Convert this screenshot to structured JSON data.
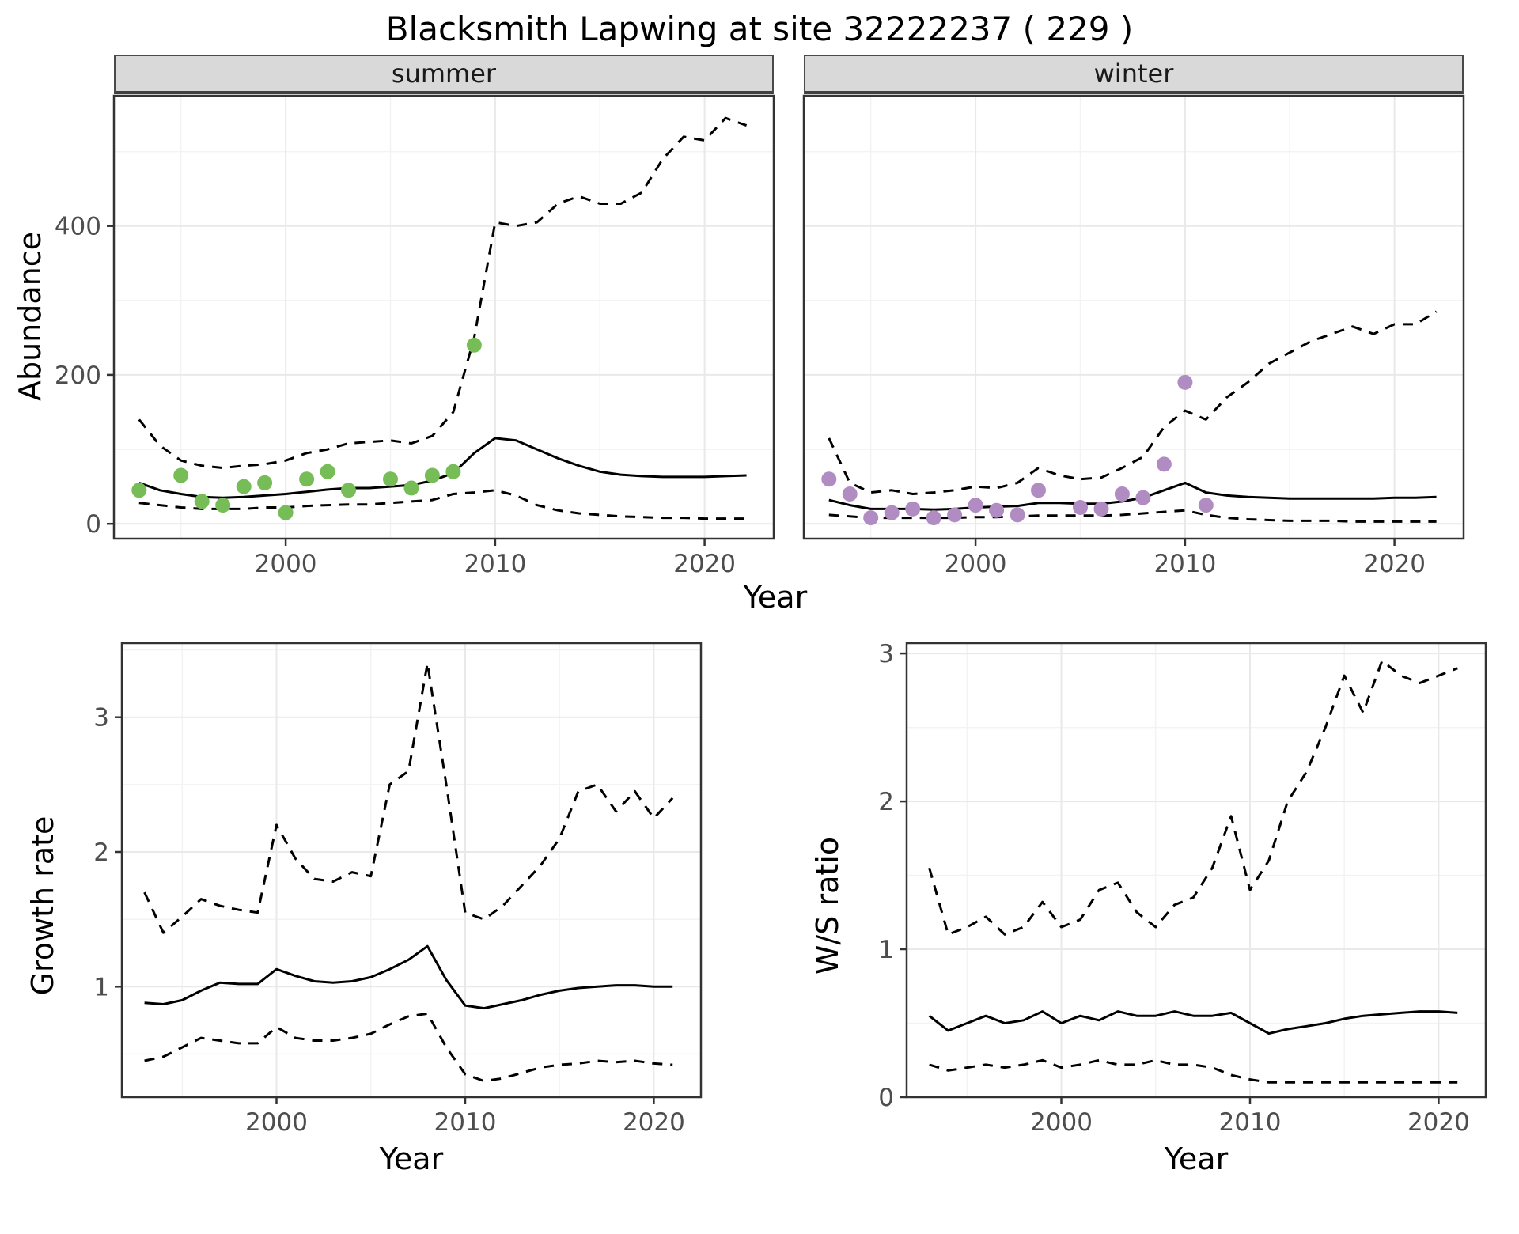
{
  "title": "Blacksmith Lapwing at site 32222237 ( 229 )",
  "chart_data": [
    {
      "type": "line",
      "panel": "abundance-summer",
      "facet_label": "summer",
      "xlabel": "Year",
      "ylabel": "Abundance",
      "xlim": [
        1991.8,
        2023.3
      ],
      "ylim": [
        -20,
        575
      ],
      "xticks": [
        2000,
        2010,
        2020
      ],
      "yticks": [
        0,
        200,
        400
      ],
      "grid": true,
      "legend": "none",
      "x": [
        1993,
        1994,
        1995,
        1996,
        1997,
        1998,
        1999,
        2000,
        2001,
        2002,
        2003,
        2004,
        2005,
        2006,
        2007,
        2008,
        2009,
        2010,
        2011,
        2012,
        2013,
        2014,
        2015,
        2016,
        2017,
        2018,
        2019,
        2020,
        2021,
        2022
      ],
      "series": [
        {
          "name": "model fit",
          "style": "solid",
          "color": "#000000",
          "values": [
            55,
            45,
            40,
            36,
            35,
            36,
            38,
            40,
            43,
            46,
            48,
            48,
            50,
            52,
            58,
            68,
            95,
            115,
            112,
            100,
            88,
            78,
            70,
            66,
            64,
            63,
            63,
            63,
            64,
            65
          ]
        },
        {
          "name": "upper credible interval",
          "style": "dashed",
          "color": "#000000",
          "values": [
            140,
            105,
            85,
            78,
            75,
            78,
            80,
            85,
            95,
            100,
            108,
            110,
            112,
            108,
            118,
            150,
            250,
            405,
            400,
            405,
            430,
            440,
            430,
            430,
            445,
            490,
            520,
            515,
            545,
            535
          ]
        },
        {
          "name": "lower credible interval",
          "style": "dashed",
          "color": "#000000",
          "values": [
            28,
            25,
            22,
            20,
            20,
            20,
            22,
            22,
            24,
            25,
            26,
            26,
            28,
            30,
            32,
            40,
            42,
            45,
            38,
            25,
            18,
            14,
            12,
            10,
            9,
            8,
            8,
            7,
            7,
            7
          ]
        }
      ],
      "points": {
        "name": "observed summer counts",
        "color": "#77bd57",
        "x": [
          1993,
          1995,
          1996,
          1997,
          1998,
          1999,
          2000,
          2001,
          2002,
          2003,
          2005,
          2006,
          2007,
          2008,
          2009
        ],
        "y": [
          45,
          65,
          30,
          25,
          50,
          55,
          15,
          60,
          70,
          45,
          60,
          48,
          65,
          70,
          240
        ]
      }
    },
    {
      "type": "line",
      "panel": "abundance-winter",
      "facet_label": "winter",
      "xlabel": "Year",
      "ylabel": "",
      "xlim": [
        1991.8,
        2023.3
      ],
      "ylim": [
        -20,
        575
      ],
      "xticks": [
        2000,
        2010,
        2020
      ],
      "yticks": [
        0,
        200,
        400
      ],
      "grid": true,
      "legend": "none",
      "x": [
        1993,
        1994,
        1995,
        1996,
        1997,
        1998,
        1999,
        2000,
        2001,
        2002,
        2003,
        2004,
        2005,
        2006,
        2007,
        2008,
        2009,
        2010,
        2011,
        2012,
        2013,
        2014,
        2015,
        2016,
        2017,
        2018,
        2019,
        2020,
        2021,
        2022
      ],
      "series": [
        {
          "name": "model fit",
          "style": "solid",
          "color": "#000000",
          "values": [
            32,
            25,
            20,
            20,
            20,
            19,
            20,
            22,
            23,
            24,
            28,
            28,
            27,
            27,
            30,
            35,
            45,
            55,
            42,
            38,
            36,
            35,
            34,
            34,
            34,
            34,
            34,
            35,
            35,
            36
          ]
        },
        {
          "name": "upper credible interval",
          "style": "dashed",
          "color": "#000000",
          "values": [
            115,
            55,
            42,
            45,
            40,
            42,
            45,
            50,
            48,
            55,
            75,
            65,
            60,
            62,
            75,
            90,
            130,
            152,
            140,
            170,
            190,
            215,
            230,
            245,
            255,
            265,
            255,
            268,
            268,
            285
          ]
        },
        {
          "name": "lower credible interval",
          "style": "dashed",
          "color": "#000000",
          "values": [
            12,
            10,
            8,
            8,
            8,
            8,
            8,
            9,
            9,
            10,
            11,
            11,
            11,
            11,
            12,
            14,
            16,
            18,
            12,
            8,
            6,
            5,
            4,
            4,
            4,
            3,
            3,
            3,
            3,
            3
          ]
        }
      ],
      "points": {
        "name": "observed winter counts",
        "color": "#b18cc2",
        "x": [
          1993,
          1994,
          1995,
          1996,
          1997,
          1998,
          1999,
          2000,
          2001,
          2002,
          2003,
          2005,
          2006,
          2007,
          2008,
          2009,
          2010,
          2011
        ],
        "y": [
          60,
          40,
          8,
          15,
          20,
          8,
          12,
          25,
          18,
          12,
          45,
          22,
          20,
          40,
          35,
          80,
          190,
          25
        ]
      }
    },
    {
      "type": "line",
      "panel": "growth-rate",
      "facet_label": "",
      "xlabel": "Year",
      "ylabel": "Growth rate",
      "xlim": [
        1991.8,
        2022.5
      ],
      "ylim": [
        0.18,
        3.55
      ],
      "xticks": [
        2000,
        2010,
        2020
      ],
      "yticks": [
        1,
        2,
        3
      ],
      "grid": true,
      "legend": "none",
      "x": [
        1993,
        1994,
        1995,
        1996,
        1997,
        1998,
        1999,
        2000,
        2001,
        2002,
        2003,
        2004,
        2005,
        2006,
        2007,
        2008,
        2009,
        2010,
        2011,
        2012,
        2013,
        2014,
        2015,
        2016,
        2017,
        2018,
        2019,
        2020,
        2021
      ],
      "series": [
        {
          "name": "model fit",
          "style": "solid",
          "color": "#000000",
          "values": [
            0.88,
            0.87,
            0.9,
            0.97,
            1.03,
            1.02,
            1.02,
            1.13,
            1.08,
            1.04,
            1.03,
            1.04,
            1.07,
            1.13,
            1.2,
            1.3,
            1.05,
            0.86,
            0.84,
            0.87,
            0.9,
            0.94,
            0.97,
            0.99,
            1.0,
            1.01,
            1.01,
            1.0,
            1.0
          ]
        },
        {
          "name": "upper credible interval",
          "style": "dashed",
          "color": "#000000",
          "values": [
            1.7,
            1.4,
            1.52,
            1.65,
            1.6,
            1.57,
            1.55,
            2.2,
            1.95,
            1.8,
            1.78,
            1.85,
            1.82,
            2.5,
            2.6,
            3.4,
            2.5,
            1.55,
            1.5,
            1.6,
            1.75,
            1.9,
            2.1,
            2.45,
            2.5,
            2.3,
            2.45,
            2.25,
            2.4
          ]
        },
        {
          "name": "lower credible interval",
          "style": "dashed",
          "color": "#000000",
          "values": [
            0.45,
            0.48,
            0.55,
            0.62,
            0.6,
            0.58,
            0.58,
            0.7,
            0.62,
            0.6,
            0.6,
            0.62,
            0.65,
            0.72,
            0.78,
            0.8,
            0.55,
            0.35,
            0.3,
            0.32,
            0.36,
            0.4,
            0.42,
            0.43,
            0.45,
            0.44,
            0.45,
            0.43,
            0.42
          ]
        }
      ]
    },
    {
      "type": "line",
      "panel": "ws-ratio",
      "facet_label": "",
      "xlabel": "Year",
      "ylabel": "W/S ratio",
      "xlim": [
        1991.8,
        2022.5
      ],
      "ylim": [
        0,
        3.07
      ],
      "xticks": [
        2000,
        2010,
        2020
      ],
      "yticks": [
        0,
        1,
        2,
        3
      ],
      "grid": true,
      "legend": "none",
      "x": [
        1993,
        1994,
        1995,
        1996,
        1997,
        1998,
        1999,
        2000,
        2001,
        2002,
        2003,
        2004,
        2005,
        2006,
        2007,
        2008,
        2009,
        2010,
        2011,
        2012,
        2013,
        2014,
        2015,
        2016,
        2017,
        2018,
        2019,
        2020,
        2021
      ],
      "series": [
        {
          "name": "model fit",
          "style": "solid",
          "color": "#000000",
          "values": [
            0.55,
            0.45,
            0.5,
            0.55,
            0.5,
            0.52,
            0.58,
            0.5,
            0.55,
            0.52,
            0.58,
            0.55,
            0.55,
            0.58,
            0.55,
            0.55,
            0.57,
            0.5,
            0.43,
            0.46,
            0.48,
            0.5,
            0.53,
            0.55,
            0.56,
            0.57,
            0.58,
            0.58,
            0.57
          ]
        },
        {
          "name": "upper credible interval",
          "style": "dashed",
          "color": "#000000",
          "values": [
            1.55,
            1.1,
            1.15,
            1.22,
            1.1,
            1.15,
            1.32,
            1.15,
            1.2,
            1.4,
            1.45,
            1.25,
            1.15,
            1.3,
            1.35,
            1.55,
            1.9,
            1.4,
            1.6,
            2.0,
            2.2,
            2.5,
            2.85,
            2.6,
            2.95,
            2.85,
            2.8,
            2.85,
            2.9
          ]
        },
        {
          "name": "lower credible interval",
          "style": "dashed",
          "color": "#000000",
          "values": [
            0.22,
            0.18,
            0.2,
            0.22,
            0.2,
            0.22,
            0.25,
            0.2,
            0.22,
            0.25,
            0.22,
            0.22,
            0.25,
            0.22,
            0.22,
            0.2,
            0.15,
            0.12,
            0.1,
            0.1,
            0.1,
            0.1,
            0.1,
            0.1,
            0.1,
            0.1,
            0.1,
            0.1,
            0.1
          ]
        }
      ]
    }
  ]
}
